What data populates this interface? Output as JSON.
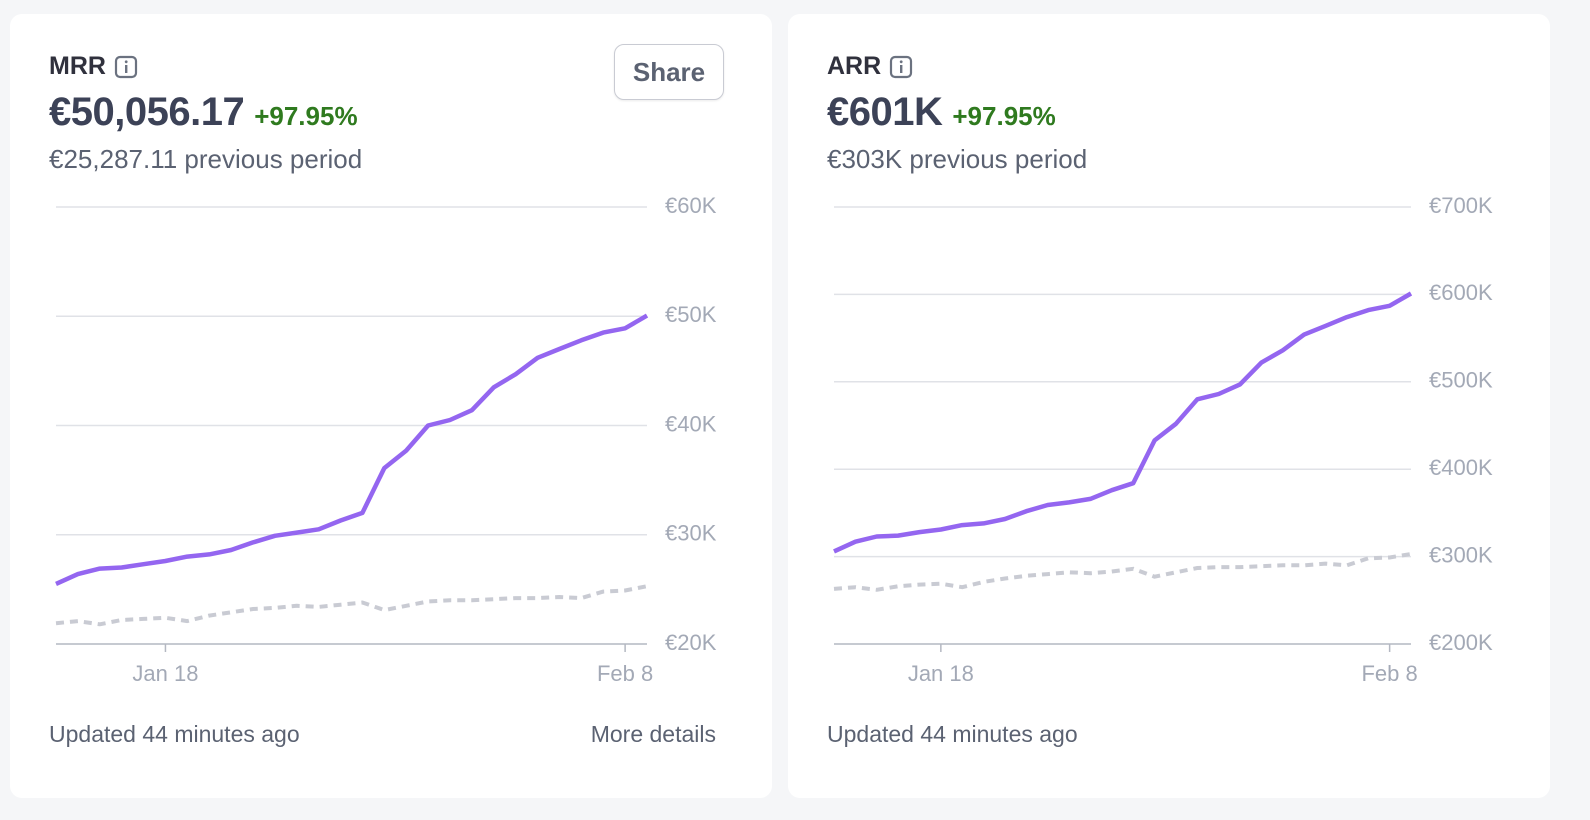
{
  "chart_data": [
    {
      "type": "line",
      "title": "MRR",
      "headline": "€50,056.17",
      "change": "+97.95%",
      "subtitle": "€25,287.11 previous period",
      "button": "Share",
      "footer": "Updated 44 minutes ago",
      "link": "More details",
      "categories": [
        null,
        null,
        null,
        null,
        null,
        "Jan 18",
        null,
        null,
        null,
        null,
        null,
        null,
        null,
        null,
        null,
        null,
        null,
        null,
        null,
        null,
        null,
        null,
        null,
        null,
        null,
        null,
        "Feb 8",
        null
      ],
      "series": [
        {
          "color": "#9466f0",
          "values": [
            25500,
            26400,
            26900,
            27000,
            27300,
            27600,
            28000,
            28200,
            28600,
            29300,
            29900,
            30200,
            30500,
            31300,
            32000,
            36100,
            37700,
            40000,
            40500,
            41400,
            43500,
            44700,
            46200,
            47000,
            47800,
            48500,
            48900,
            50056
          ]
        },
        {
          "color": "#c9cbd3",
          "dashed": true,
          "values": [
            21900,
            22100,
            21800,
            22200,
            22300,
            22400,
            22100,
            22600,
            22900,
            23200,
            23300,
            23500,
            23400,
            23600,
            23800,
            23100,
            23500,
            23900,
            24000,
            24000,
            24100,
            24200,
            24200,
            24300,
            24200,
            24800,
            24900,
            25287
          ]
        }
      ],
      "ylim": [
        20000,
        60000
      ],
      "yticks": [
        {
          "value": 20000,
          "label": "€20K"
        },
        {
          "value": 30000,
          "label": "€30K"
        },
        {
          "value": 40000,
          "label": "€40K"
        },
        {
          "value": 50000,
          "label": "€50K"
        },
        {
          "value": 60000,
          "label": "€60K"
        }
      ],
      "grid": true
    },
    {
      "type": "line",
      "title": "ARR",
      "headline": "€601K",
      "change": "+97.95%",
      "subtitle": "€303K previous period",
      "footer": "Updated 44 minutes ago",
      "categories": [
        null,
        null,
        null,
        null,
        null,
        "Jan 18",
        null,
        null,
        null,
        null,
        null,
        null,
        null,
        null,
        null,
        null,
        null,
        null,
        null,
        null,
        null,
        null,
        null,
        null,
        null,
        null,
        "Feb 8",
        null
      ],
      "series": [
        {
          "color": "#9466f0",
          "values": [
            306000,
            317000,
            323000,
            324000,
            328000,
            331000,
            336000,
            338000,
            343000,
            352000,
            359000,
            362000,
            366000,
            376000,
            384000,
            433000,
            452000,
            480000,
            486000,
            497000,
            522000,
            536000,
            554000,
            564000,
            574000,
            582000,
            587000,
            601000
          ]
        },
        {
          "color": "#c9cbd3",
          "dashed": true,
          "values": [
            263000,
            265000,
            262000,
            266000,
            268000,
            269000,
            265000,
            271000,
            275000,
            278000,
            280000,
            282000,
            281000,
            283000,
            286000,
            277000,
            282000,
            287000,
            288000,
            288000,
            289000,
            290000,
            290000,
            292000,
            290000,
            298000,
            299000,
            303000
          ]
        }
      ],
      "ylim": [
        200000,
        700000
      ],
      "yticks": [
        {
          "value": 200000,
          "label": "€200K"
        },
        {
          "value": 300000,
          "label": "€300K"
        },
        {
          "value": 400000,
          "label": "€400K"
        },
        {
          "value": 500000,
          "label": "€500K"
        },
        {
          "value": 600000,
          "label": "€600K"
        },
        {
          "value": 700000,
          "label": "€700K"
        }
      ],
      "grid": true
    }
  ]
}
